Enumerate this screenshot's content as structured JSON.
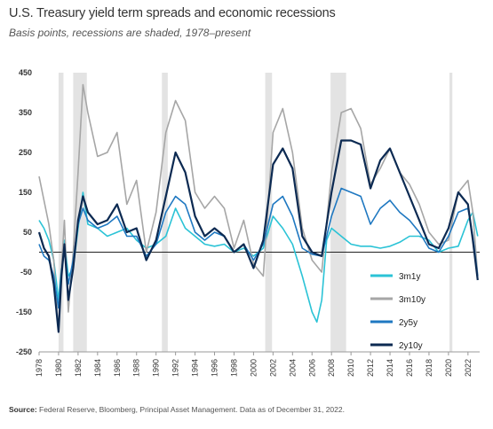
{
  "title": "U.S. Treasury yield term spreads and economic recessions",
  "subtitle": "Basis points, recessions are shaded, 1978–present",
  "source_label": "Source:",
  "source_text": " Federal Reserve, Bloomberg, Principal Asset Management. Data as of December 31, 2022.",
  "colors": {
    "3m1y": "#2bc3d6",
    "3m10y": "#a6a6a6",
    "2y5y": "#1f78c1",
    "2y10y": "#0c2a52",
    "recession": "#e3e3e3"
  },
  "chart_data": {
    "type": "line",
    "xlim": [
      1978,
      2023.2
    ],
    "ylim": [
      -250,
      450
    ],
    "yticks": [
      450,
      350,
      250,
      150,
      50,
      -50,
      -150,
      -250
    ],
    "xticks": [
      1978,
      1980,
      1982,
      1984,
      1986,
      1988,
      1990,
      1992,
      1994,
      1996,
      1998,
      2000,
      2002,
      2004,
      2006,
      2008,
      2010,
      2012,
      2014,
      2016,
      2018,
      2020,
      2022
    ],
    "recessions": [
      [
        1980.0,
        1980.5
      ],
      [
        1981.5,
        1982.9
      ],
      [
        1990.6,
        1991.2
      ],
      [
        2001.2,
        2001.9
      ],
      [
        2007.9,
        2009.5
      ],
      [
        2020.1,
        2020.4
      ]
    ],
    "series": [
      {
        "name": "3m1y",
        "color": "#2bc3d6",
        "x": [
          1978,
          1978.5,
          1979,
          1979.5,
          1980,
          1980.3,
          1980.6,
          1981,
          1981.5,
          1982,
          1982.5,
          1983,
          1984,
          1985,
          1986,
          1987,
          1988,
          1989,
          1990,
          1991,
          1992,
          1993,
          1994,
          1995,
          1996,
          1997,
          1998,
          1999,
          2000,
          2001,
          2002,
          2003,
          2004,
          2005,
          2006,
          2006.5,
          2007,
          2007.5,
          2008,
          2009,
          2010,
          2011,
          2012,
          2013,
          2014,
          2015,
          2016,
          2017,
          2018,
          2019,
          2020,
          2021,
          2022,
          2022.5,
          2023
        ],
        "y": [
          80,
          60,
          30,
          -20,
          -120,
          -40,
          30,
          -60,
          -40,
          60,
          150,
          70,
          60,
          40,
          50,
          60,
          30,
          10,
          20,
          40,
          110,
          60,
          40,
          20,
          15,
          20,
          0,
          10,
          -10,
          10,
          90,
          60,
          20,
          -60,
          -150,
          -175,
          -120,
          30,
          60,
          40,
          20,
          15,
          15,
          10,
          15,
          25,
          40,
          40,
          30,
          0,
          10,
          15,
          80,
          100,
          40
        ]
      },
      {
        "name": "3m10y",
        "color": "#a6a6a6",
        "x": [
          1978,
          1978.5,
          1979,
          1979.5,
          1980,
          1980.3,
          1980.6,
          1981,
          1981.5,
          1982,
          1982.5,
          1983,
          1984,
          1985,
          1986,
          1987,
          1988,
          1989,
          1990,
          1991,
          1992,
          1993,
          1994,
          1995,
          1996,
          1997,
          1998,
          1999,
          2000,
          2001,
          2002,
          2003,
          2004,
          2005,
          2006,
          2007,
          2008,
          2009,
          2010,
          2011,
          2012,
          2013,
          2014,
          2015,
          2016,
          2017,
          2018,
          2019,
          2020,
          2021,
          2022,
          2022.5,
          2023
        ],
        "y": [
          190,
          130,
          70,
          -20,
          -200,
          -40,
          80,
          -150,
          0,
          200,
          420,
          350,
          240,
          250,
          300,
          120,
          180,
          0,
          100,
          300,
          380,
          330,
          150,
          110,
          140,
          110,
          10,
          80,
          -30,
          -60,
          300,
          360,
          250,
          60,
          -20,
          -50,
          200,
          350,
          360,
          310,
          170,
          210,
          260,
          200,
          170,
          120,
          50,
          20,
          30,
          150,
          180,
          100,
          -60
        ]
      },
      {
        "name": "2y5y",
        "color": "#1f78c1",
        "x": [
          1978,
          1978.5,
          1979,
          1979.5,
          1980,
          1980.3,
          1980.6,
          1981,
          1981.5,
          1982,
          1982.5,
          1983,
          1984,
          1985,
          1986,
          1987,
          1988,
          1989,
          1990,
          1991,
          1992,
          1993,
          1994,
          1995,
          1996,
          1997,
          1998,
          1999,
          2000,
          2001,
          2002,
          2003,
          2004,
          2005,
          2006,
          2007,
          2008,
          2009,
          2010,
          2011,
          2012,
          2013,
          2014,
          2015,
          2016,
          2017,
          2018,
          2019,
          2020,
          2021,
          2022,
          2022.5,
          2023
        ],
        "y": [
          20,
          -10,
          -20,
          -60,
          -140,
          -50,
          10,
          -80,
          -20,
          70,
          110,
          80,
          60,
          70,
          90,
          40,
          40,
          -10,
          20,
          100,
          140,
          120,
          50,
          30,
          50,
          40,
          0,
          20,
          -20,
          20,
          120,
          140,
          90,
          10,
          -5,
          -10,
          90,
          160,
          150,
          140,
          70,
          110,
          130,
          100,
          80,
          50,
          10,
          0,
          40,
          100,
          110,
          40,
          -60
        ]
      },
      {
        "name": "2y10y",
        "color": "#0c2a52",
        "x": [
          1978,
          1978.5,
          1979,
          1979.5,
          1980,
          1980.3,
          1980.6,
          1981,
          1981.5,
          1982,
          1982.5,
          1983,
          1984,
          1985,
          1986,
          1987,
          1988,
          1989,
          1990,
          1991,
          1992,
          1993,
          1994,
          1995,
          1996,
          1997,
          1998,
          1999,
          2000,
          2001,
          2002,
          2003,
          2004,
          2005,
          2006,
          2007,
          2008,
          2009,
          2010,
          2011,
          2012,
          2013,
          2014,
          2015,
          2016,
          2017,
          2018,
          2019,
          2020,
          2021,
          2022,
          2022.5,
          2023
        ],
        "y": [
          50,
          10,
          -10,
          -80,
          -200,
          -60,
          20,
          -120,
          -40,
          80,
          140,
          100,
          70,
          80,
          120,
          50,
          60,
          -20,
          30,
          140,
          250,
          200,
          90,
          40,
          60,
          40,
          0,
          20,
          -40,
          30,
          220,
          260,
          210,
          40,
          0,
          -10,
          150,
          280,
          280,
          270,
          160,
          230,
          260,
          200,
          140,
          80,
          20,
          10,
          60,
          150,
          120,
          30,
          -70
        ]
      }
    ]
  }
}
